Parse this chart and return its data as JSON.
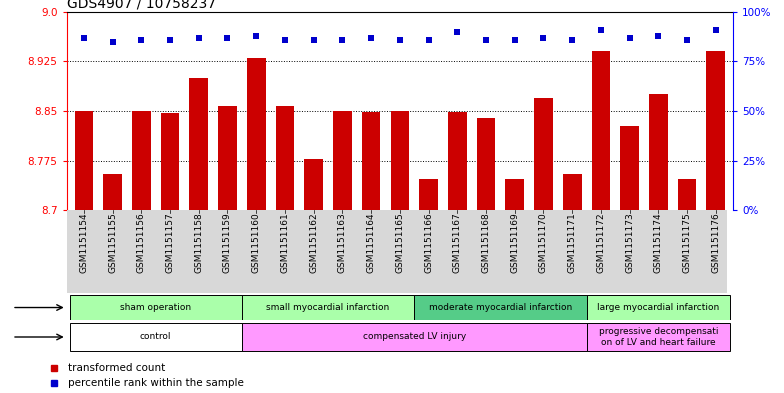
{
  "title": "GDS4907 / 10758237",
  "samples": [
    "GSM1151154",
    "GSM1151155",
    "GSM1151156",
    "GSM1151157",
    "GSM1151158",
    "GSM1151159",
    "GSM1151160",
    "GSM1151161",
    "GSM1151162",
    "GSM1151163",
    "GSM1151164",
    "GSM1151165",
    "GSM1151166",
    "GSM1151167",
    "GSM1151168",
    "GSM1151169",
    "GSM1151170",
    "GSM1151171",
    "GSM1151172",
    "GSM1151173",
    "GSM1151174",
    "GSM1151175",
    "GSM1151176"
  ],
  "bar_values": [
    8.85,
    8.755,
    8.85,
    8.847,
    8.9,
    8.857,
    8.93,
    8.857,
    8.778,
    8.85,
    8.848,
    8.85,
    8.748,
    8.848,
    8.84,
    8.748,
    8.87,
    8.755,
    8.94,
    8.828,
    8.875,
    8.748,
    8.94
  ],
  "percentile_values": [
    87,
    85,
    86,
    86,
    87,
    87,
    88,
    86,
    86,
    86,
    87,
    86,
    86,
    90,
    86,
    86,
    87,
    86,
    91,
    87,
    88,
    86,
    91
  ],
  "ylim_left": [
    8.7,
    9.0
  ],
  "ylim_right": [
    0,
    100
  ],
  "yticks_left": [
    8.7,
    8.775,
    8.85,
    8.925,
    9.0
  ],
  "yticks_right": [
    0,
    25,
    50,
    75,
    100
  ],
  "bar_color": "#cc0000",
  "percentile_color": "#0000cc",
  "grid_values": [
    8.775,
    8.85,
    8.925
  ],
  "protocols": [
    {
      "label": "sham operation",
      "start": 0,
      "end": 5,
      "color": "#aaffaa"
    },
    {
      "label": "small myocardial infarction",
      "start": 6,
      "end": 11,
      "color": "#aaffaa"
    },
    {
      "label": "moderate myocardial infarction",
      "start": 12,
      "end": 17,
      "color": "#55cc88"
    },
    {
      "label": "large myocardial infarction",
      "start": 18,
      "end": 22,
      "color": "#aaffaa"
    }
  ],
  "disease_states": [
    {
      "label": "control",
      "start": 0,
      "end": 5,
      "color": "#ffffff"
    },
    {
      "label": "compensated LV injury",
      "start": 6,
      "end": 17,
      "color": "#ff99ff"
    },
    {
      "label": "progressive decompensati\non of LV and heart failure",
      "start": 18,
      "end": 22,
      "color": "#ff99ff"
    }
  ]
}
